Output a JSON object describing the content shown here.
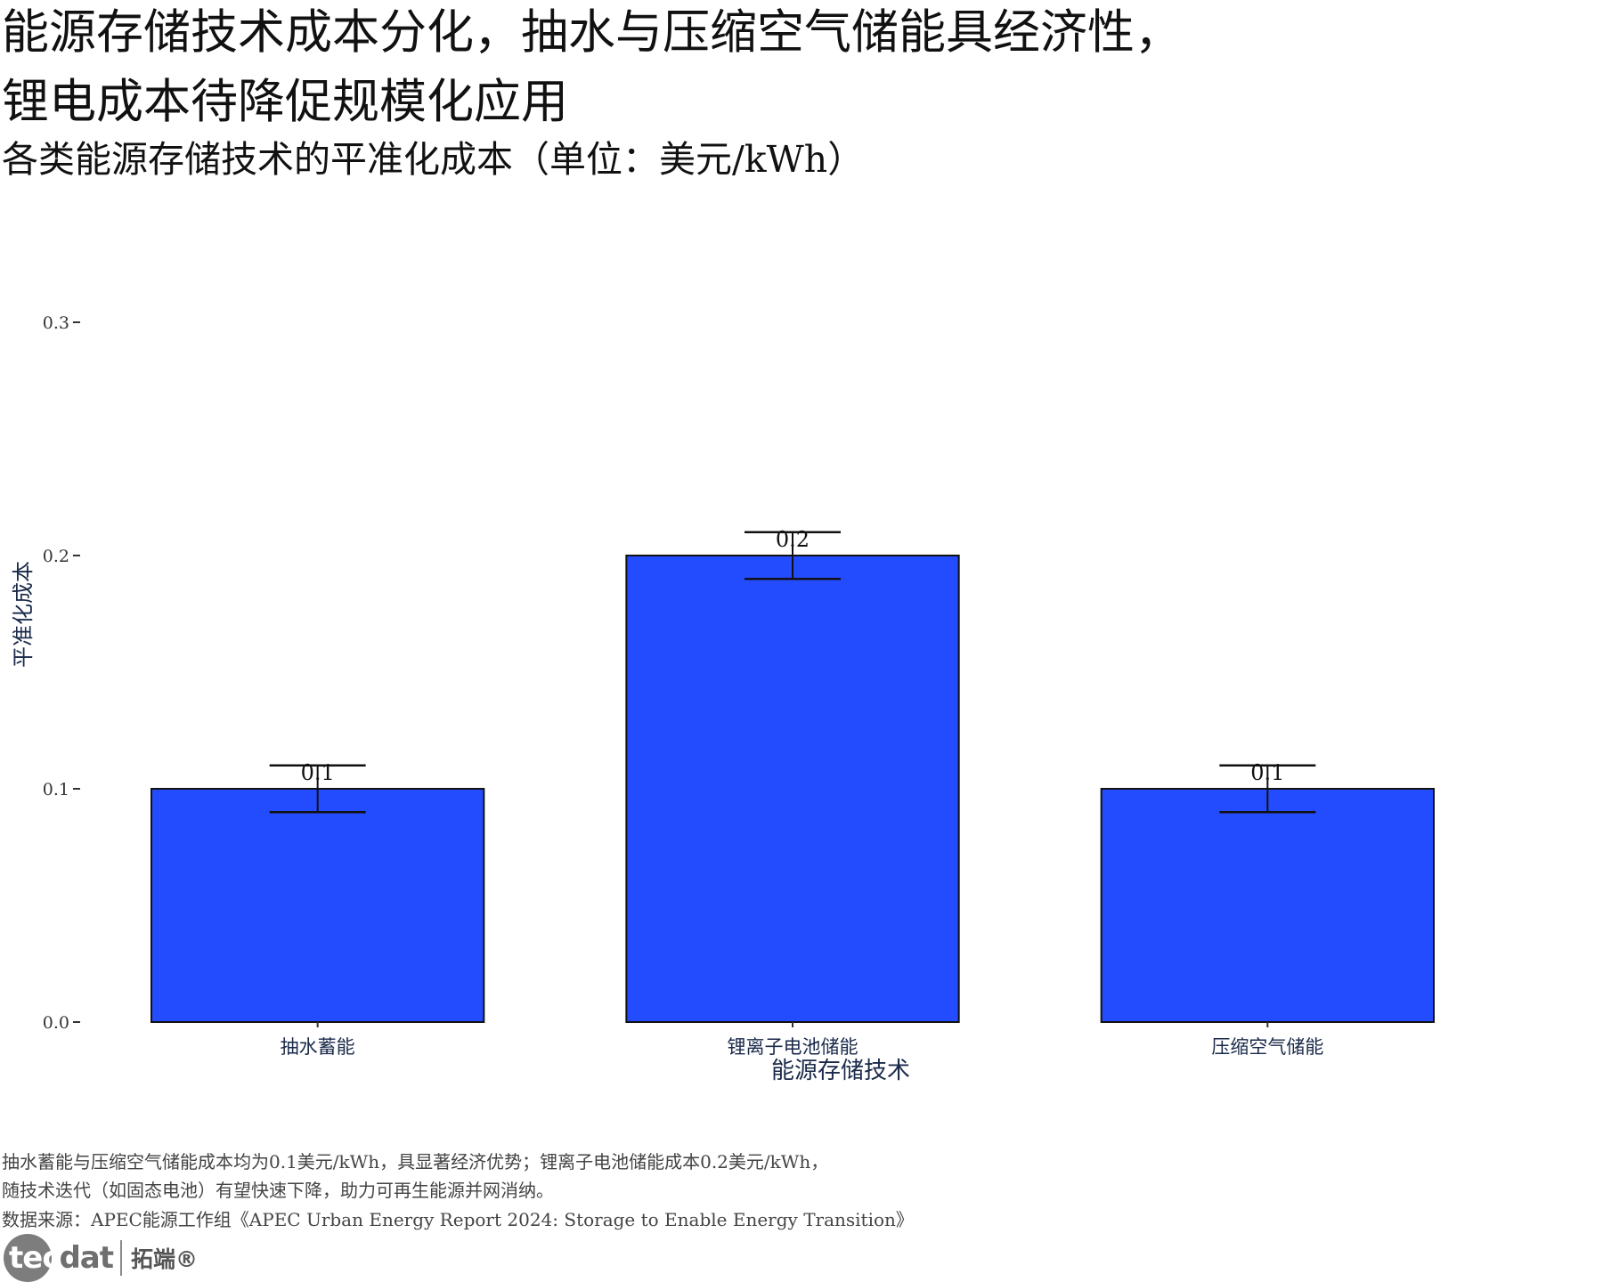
{
  "title_lines": [
    "能源存储技术成本分化，抽水与压缩空气储能具经济性，",
    "锂电成本待降促规模化应用"
  ],
  "subtitle": "各类能源存储技术的平准化成本（单位：美元/kWh）",
  "chart_data": {
    "type": "bar",
    "categories": [
      "抽水蓄能",
      "锂离子电池储能",
      "压缩空气储能"
    ],
    "values": [
      0.1,
      0.2,
      0.1
    ],
    "error_bars": [
      {
        "low": 0.09,
        "high": 0.11
      },
      {
        "low": 0.19,
        "high": 0.21
      },
      {
        "low": 0.09,
        "high": 0.11
      }
    ],
    "data_labels": [
      "0.1",
      "0.2",
      "0.1"
    ],
    "xlabel": "能源存储技术",
    "ylabel": "平准化成本",
    "ylim": [
      0,
      0.3
    ],
    "yticks": [
      0.0,
      0.1,
      0.2,
      0.3
    ],
    "ytick_labels": [
      "0.0",
      "0.1",
      "0.2",
      "0.3"
    ],
    "grid": false,
    "bar_color": "#234cff",
    "bar_edge_color": "#111111"
  },
  "caption_lines": [
    "抽水蓄能与压缩空气储能成本均为0.1美元/kWh，具显著经济优势；锂离子电池储能成本0.2美元/kWh，",
    "随技术迭代（如固态电池）有望快速下降，助力可再生能源并网消纳。",
    "数据来源：APEC能源工作组《APEC Urban Energy Report 2024: Storage to Enable Energy Transition》"
  ],
  "logo": {
    "brand_light": "tec",
    "brand_dark": "dat",
    "brand_cn": "拓端®"
  }
}
